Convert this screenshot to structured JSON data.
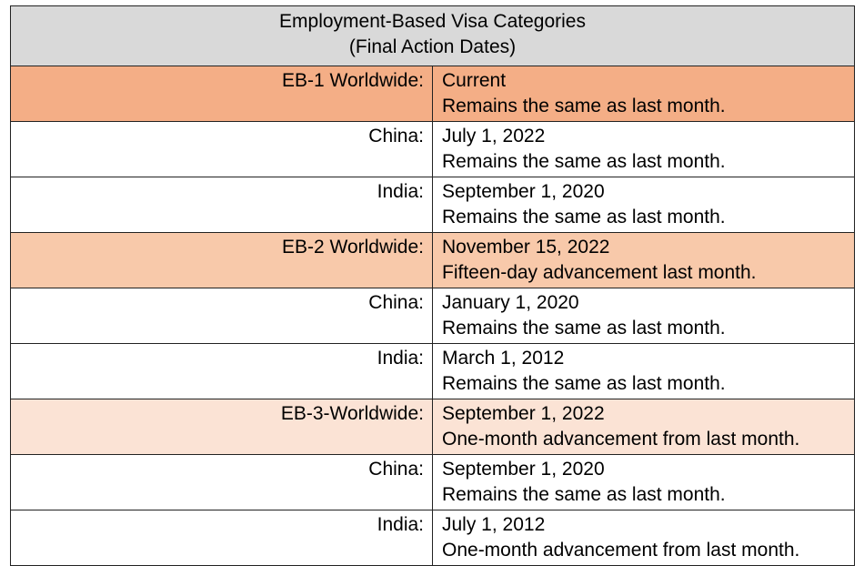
{
  "header": {
    "title": "Employment-Based Visa Categories",
    "subtitle": "(Final Action Dates)"
  },
  "table": {
    "rows": [
      [
        "EB-1 Worldwide:",
        "Current",
        "Remains the same as last month."
      ],
      [
        "China:",
        "July 1, 2022",
        "Remains the same as last month."
      ],
      [
        "India:",
        "September 1, 2020",
        "Remains the same as last month."
      ],
      [
        "EB-2 Worldwide:",
        "November 15, 2022",
        "Fifteen-day advancement last month."
      ],
      [
        "China:",
        "January 1, 2020",
        "Remains the same as last month."
      ],
      [
        "India:",
        "March 1, 2012",
        "Remains the same as last month."
      ],
      [
        "EB-3-Worldwide:",
        "September 1, 2022",
        "One-month advancement from last month."
      ],
      [
        "China:",
        "September 1, 2020",
        "Remains the same as last month."
      ],
      [
        "India:",
        "July 1, 2012",
        "One-month advancement from last month."
      ]
    ]
  }
}
